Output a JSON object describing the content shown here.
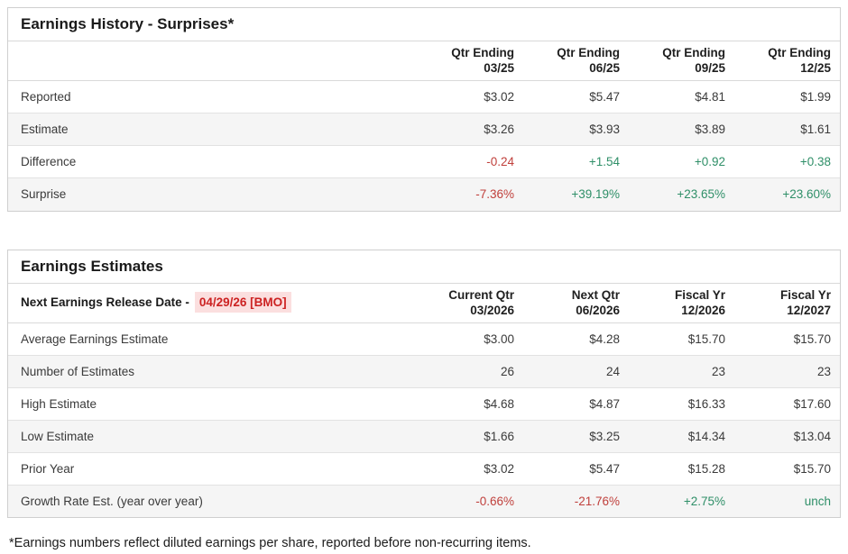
{
  "colors": {
    "positive": "#2f8f68",
    "negative": "#c0403c",
    "release_text": "#cc2222",
    "release_bg": "#fbdfdf"
  },
  "earnings_history": {
    "title": "Earnings History - Surprises*",
    "columns": [
      {
        "line1": "Qtr Ending",
        "line2": "03/25"
      },
      {
        "line1": "Qtr Ending",
        "line2": "06/25"
      },
      {
        "line1": "Qtr Ending",
        "line2": "09/25"
      },
      {
        "line1": "Qtr Ending",
        "line2": "12/25"
      }
    ],
    "rows": [
      {
        "label": "Reported",
        "values": [
          "$3.02",
          "$5.47",
          "$4.81",
          "$1.99"
        ],
        "tones": [
          "",
          "",
          "",
          ""
        ]
      },
      {
        "label": "Estimate",
        "values": [
          "$3.26",
          "$3.93",
          "$3.89",
          "$1.61"
        ],
        "tones": [
          "",
          "",
          "",
          ""
        ]
      },
      {
        "label": "Difference",
        "values": [
          "-0.24",
          "+1.54",
          "+0.92",
          "+0.38"
        ],
        "tones": [
          "neg",
          "pos",
          "pos",
          "pos"
        ]
      },
      {
        "label": "Surprise",
        "values": [
          "-7.36%",
          "+39.19%",
          "+23.65%",
          "+23.60%"
        ],
        "tones": [
          "neg",
          "pos",
          "pos",
          "pos"
        ]
      }
    ]
  },
  "earnings_estimates": {
    "title": "Earnings Estimates",
    "release_label": "Next Earnings Release Date -",
    "release_date": "04/29/26 [BMO]",
    "columns": [
      {
        "line1": "Current Qtr",
        "line2": "03/2026"
      },
      {
        "line1": "Next Qtr",
        "line2": "06/2026"
      },
      {
        "line1": "Fiscal Yr",
        "line2": "12/2026"
      },
      {
        "line1": "Fiscal Yr",
        "line2": "12/2027"
      }
    ],
    "rows": [
      {
        "label": "Average Earnings Estimate",
        "values": [
          "$3.00",
          "$4.28",
          "$15.70",
          "$15.70"
        ],
        "tones": [
          "",
          "",
          "",
          ""
        ]
      },
      {
        "label": "Number of Estimates",
        "values": [
          "26",
          "24",
          "23",
          "23"
        ],
        "tones": [
          "",
          "",
          "",
          ""
        ]
      },
      {
        "label": "High Estimate",
        "values": [
          "$4.68",
          "$4.87",
          "$16.33",
          "$17.60"
        ],
        "tones": [
          "",
          "",
          "",
          ""
        ]
      },
      {
        "label": "Low Estimate",
        "values": [
          "$1.66",
          "$3.25",
          "$14.34",
          "$13.04"
        ],
        "tones": [
          "",
          "",
          "",
          ""
        ]
      },
      {
        "label": "Prior Year",
        "values": [
          "$3.02",
          "$5.47",
          "$15.28",
          "$15.70"
        ],
        "tones": [
          "",
          "",
          "",
          ""
        ]
      },
      {
        "label": "Growth Rate Est. (year over year)",
        "values": [
          "-0.66%",
          "-21.76%",
          "+2.75%",
          "unch"
        ],
        "tones": [
          "neg",
          "neg",
          "pos",
          "pos"
        ]
      }
    ]
  },
  "footnote": "*Earnings numbers reflect diluted earnings per share, reported before non-recurring items."
}
